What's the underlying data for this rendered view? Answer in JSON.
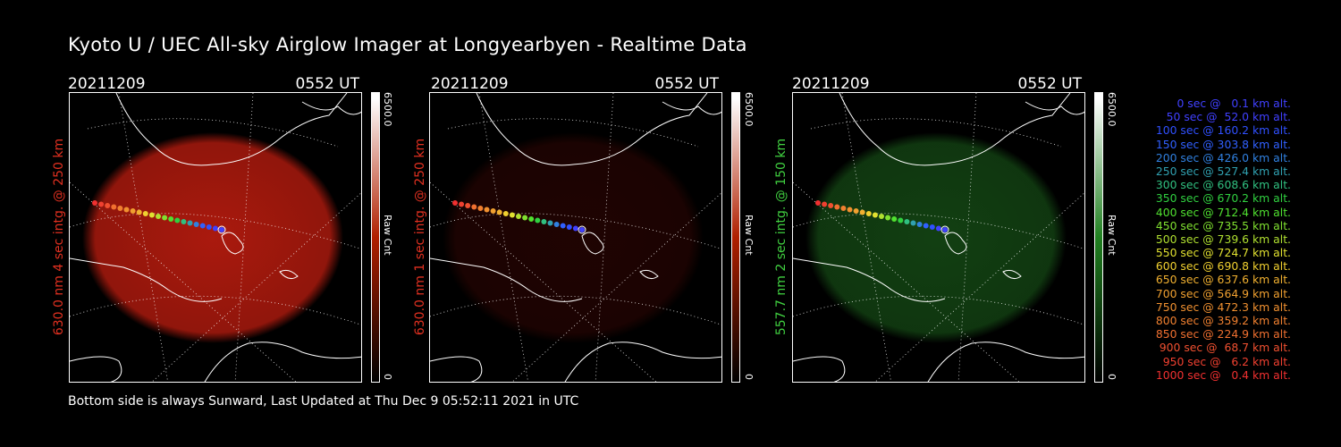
{
  "title": "Kyoto U / UEC All-sky Airglow Imager at Longyearbyen - Realtime Data",
  "panels": [
    {
      "date": "20211209",
      "time": "0552 UT",
      "ylabel": "630.0 nm 4 sec intg. @ 250 km",
      "label_color": "#e03020",
      "cb_max": "6500.0",
      "cb_min": "0",
      "cb_unit": "Raw Cnt",
      "glow_color": "#c81e10",
      "glow_intensity": 0.85,
      "cb_color": "#b02000"
    },
    {
      "date": "20211209",
      "time": "0552 UT",
      "ylabel": "630.0 nm 1 sec intg. @ 250 km",
      "label_color": "#e03020",
      "cb_max": "6500.0",
      "cb_min": "0",
      "cb_unit": "Raw Cnt",
      "glow_color": "#5a0a05",
      "glow_intensity": 0.35,
      "cb_color": "#b02000"
    },
    {
      "date": "20211209",
      "time": "0552 UT",
      "ylabel": "557.7 nm 2 sec intg. @ 150 km",
      "label_color": "#40d040",
      "cb_max": "6500.0",
      "cb_min": "0",
      "cb_unit": "Raw Cnt",
      "glow_color": "#1e6a1e",
      "glow_intensity": 0.6,
      "cb_color": "#208020"
    }
  ],
  "footer": "Bottom side is always Sunward, Last Updated at Thu Dec  9 05:52:11 2021 in UTC",
  "legend": [
    {
      "text": "0 sec @   0.1 km alt.",
      "color": "#4040ff"
    },
    {
      "text": "50 sec @  52.0 km alt.",
      "color": "#4040ff"
    },
    {
      "text": "100 sec @ 160.2 km alt.",
      "color": "#3050ff"
    },
    {
      "text": "150 sec @ 303.8 km alt.",
      "color": "#3060ff"
    },
    {
      "text": "200 sec @ 426.0 km alt.",
      "color": "#3080e0"
    },
    {
      "text": "250 sec @ 527.4 km alt.",
      "color": "#30a0b0"
    },
    {
      "text": "300 sec @ 608.6 km alt.",
      "color": "#30c080"
    },
    {
      "text": "350 sec @ 670.2 km alt.",
      "color": "#30d040"
    },
    {
      "text": "400 sec @ 712.4 km alt.",
      "color": "#50e030"
    },
    {
      "text": "450 sec @ 735.5 km alt.",
      "color": "#80e030"
    },
    {
      "text": "500 sec @ 739.6 km alt.",
      "color": "#b0e030"
    },
    {
      "text": "550 sec @ 724.7 km alt.",
      "color": "#e0e030"
    },
    {
      "text": "600 sec @ 690.8 km alt.",
      "color": "#f0d030"
    },
    {
      "text": "650 sec @ 637.6 km alt.",
      "color": "#f0b030"
    },
    {
      "text": "700 sec @ 564.9 km alt.",
      "color": "#f0a030"
    },
    {
      "text": "750 sec @ 472.3 km alt.",
      "color": "#f09030"
    },
    {
      "text": "800 sec @ 359.2 km alt.",
      "color": "#f08030"
    },
    {
      "text": "850 sec @ 224.9 km alt.",
      "color": "#f07030"
    },
    {
      "text": "900 sec @  68.7 km alt.",
      "color": "#f05030"
    },
    {
      "text": "950 sec @   6.2 km alt.",
      "color": "#f04030"
    },
    {
      "text": "1000 sec @   0.4 km alt.",
      "color": "#f03030"
    }
  ]
}
